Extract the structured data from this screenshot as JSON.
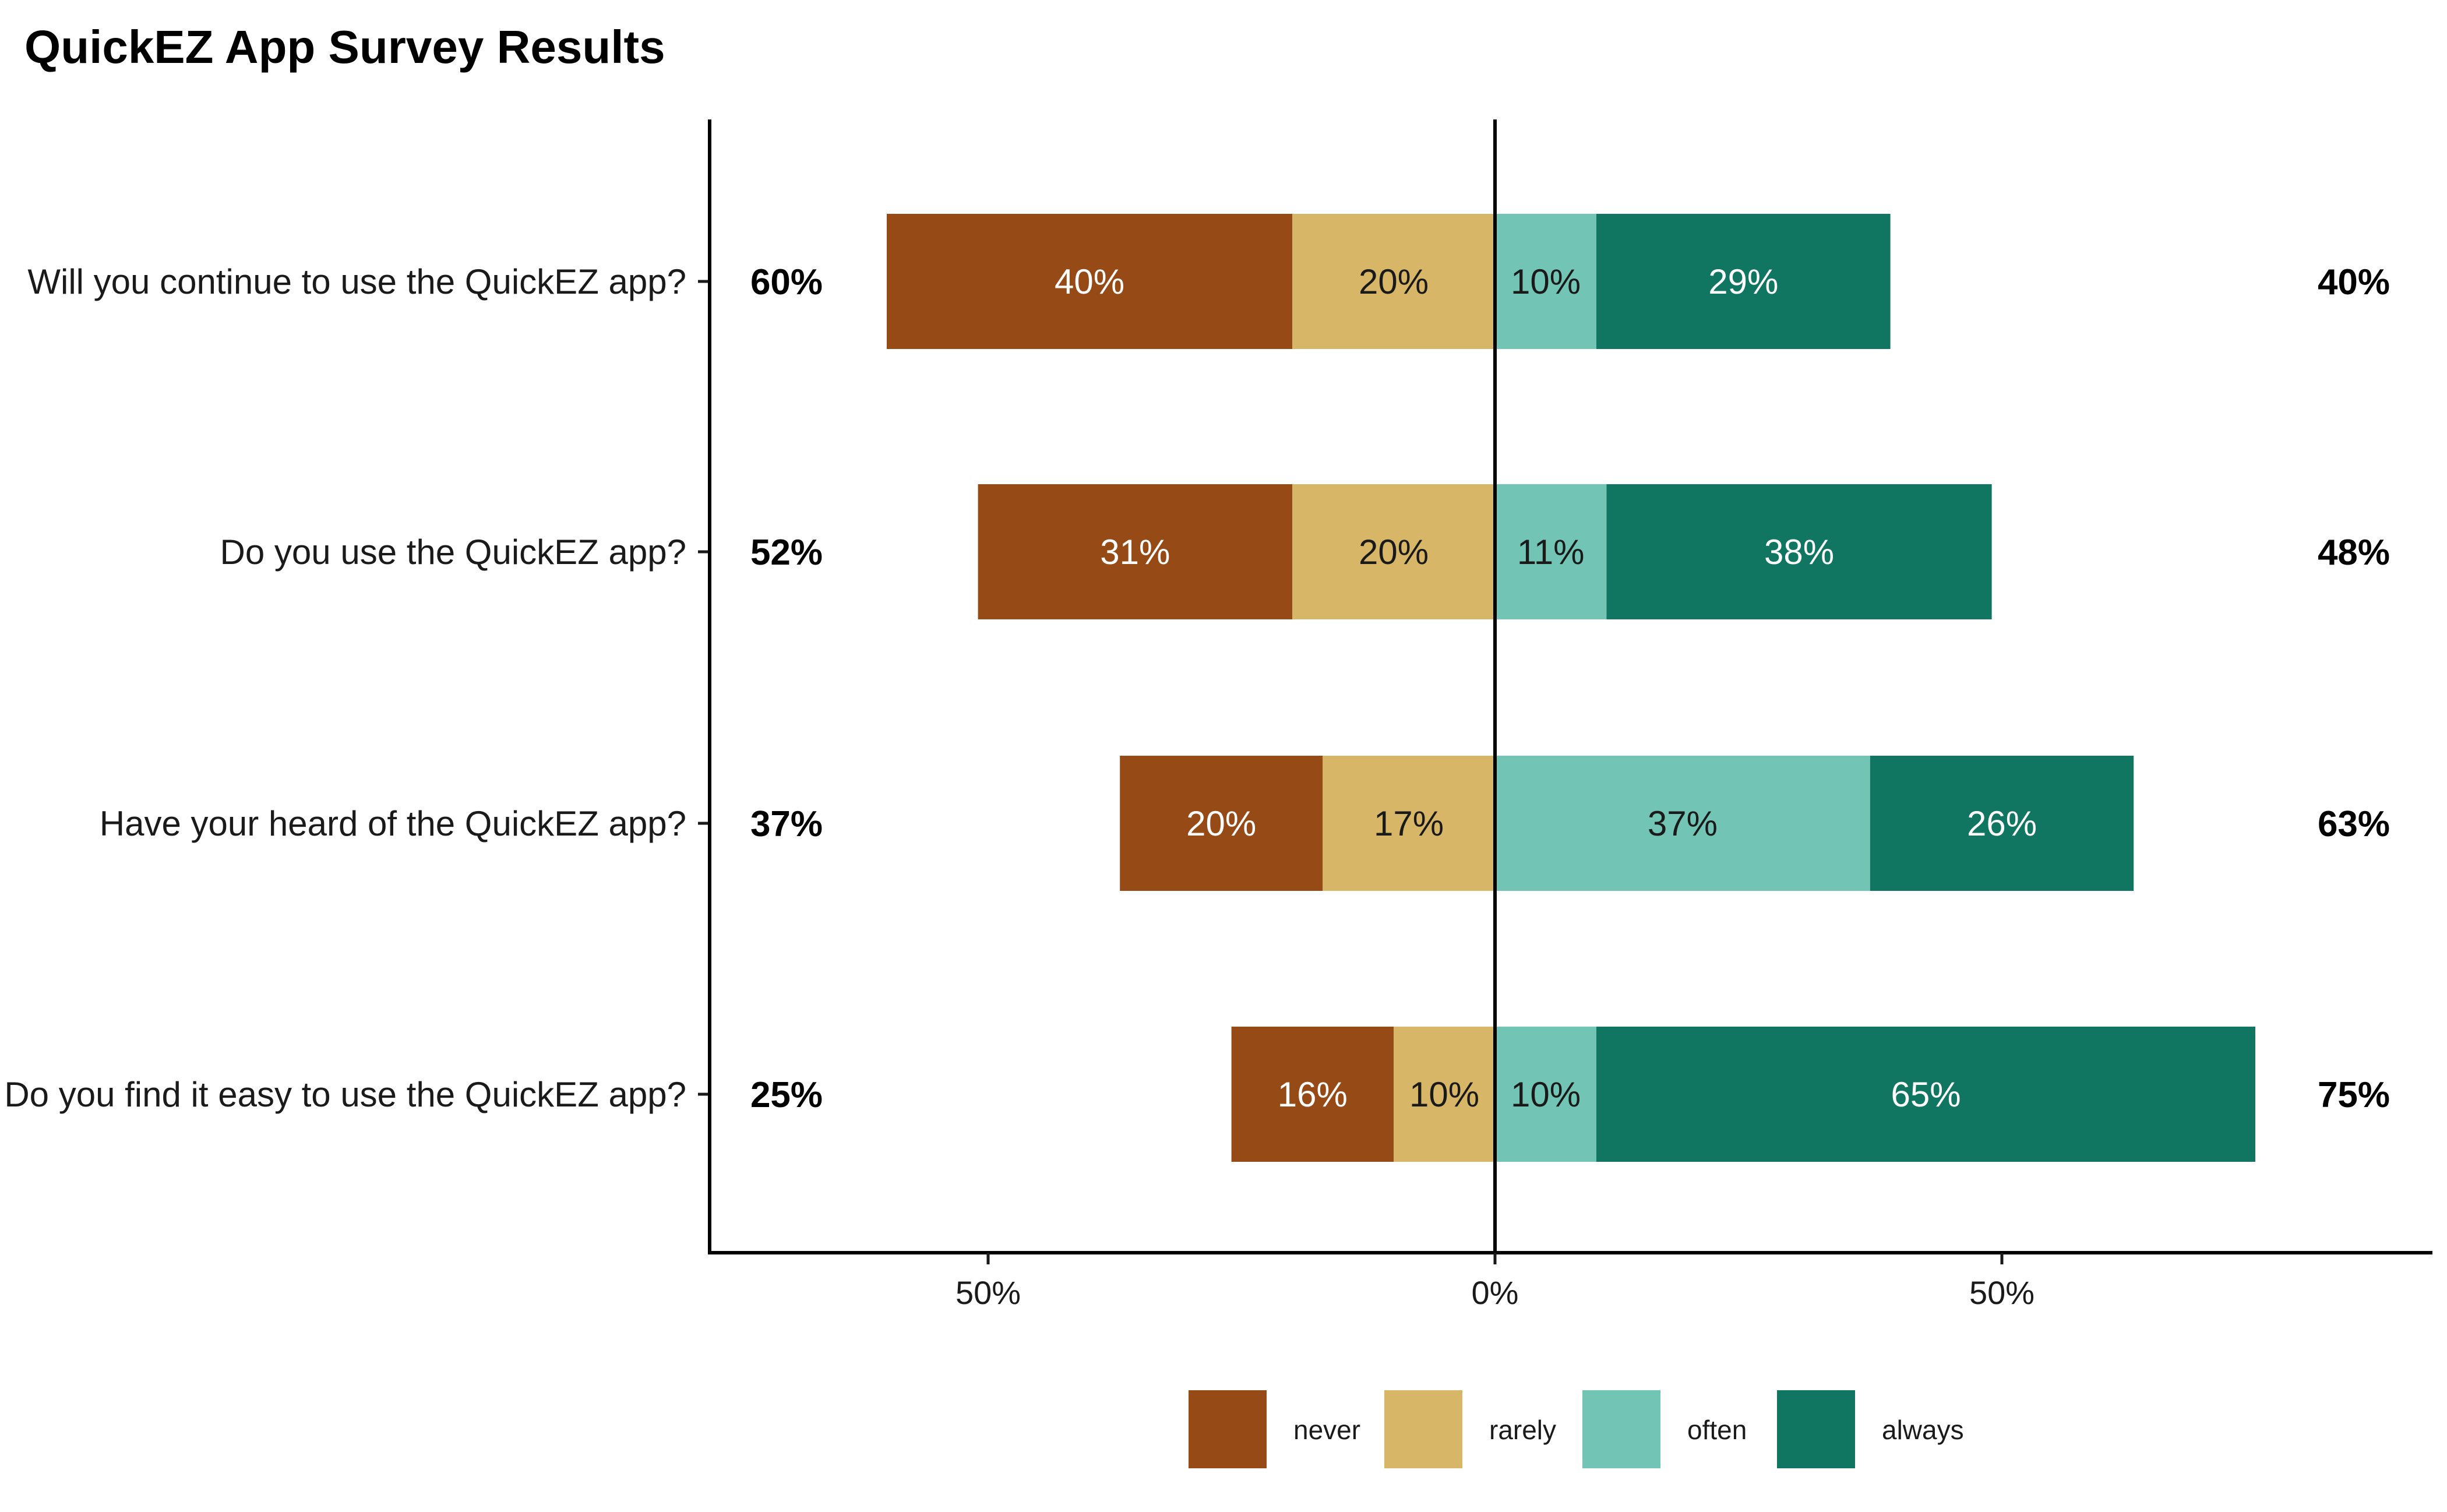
{
  "chart_data": {
    "type": "bar",
    "orientation": "horizontal-diverging",
    "title": "QuickEZ App Survey Results",
    "categories": [
      "Will you continue to use the QuickEZ app?",
      "Do you use the QuickEZ app?",
      "Have your heard of the QuickEZ app?",
      "Do you find it easy to use the QuickEZ app?"
    ],
    "series": [
      {
        "name": "never",
        "color": "#964B16",
        "label_color": "#ffffff",
        "side": "negative",
        "values": [
          40,
          31,
          20,
          16
        ],
        "labels": [
          "40%",
          "31%",
          "20%",
          "16%"
        ]
      },
      {
        "name": "rarely",
        "color": "#D7B667",
        "label_color": "#1a1a1a",
        "side": "negative",
        "values": [
          20,
          20,
          17,
          10
        ],
        "labels": [
          "20%",
          "20%",
          "17%",
          "10%"
        ]
      },
      {
        "name": "often",
        "color": "#72C4B5",
        "label_color": "#1a1a1a",
        "side": "positive",
        "values": [
          10,
          11,
          37,
          10
        ],
        "labels": [
          "10%",
          "11%",
          "37%",
          "10%"
        ]
      },
      {
        "name": "always",
        "color": "#107661",
        "label_color": "#ffffff",
        "side": "positive",
        "values": [
          29,
          38,
          26,
          65
        ],
        "labels": [
          "29%",
          "38%",
          "26%",
          "65%"
        ]
      }
    ],
    "left_totals": [
      "60%",
      "52%",
      "37%",
      "25%"
    ],
    "right_totals": [
      "40%",
      "48%",
      "63%",
      "75%"
    ],
    "xlim": [
      -77.5,
      92
    ],
    "x_ticks": [
      {
        "value": -50,
        "label": "50%"
      },
      {
        "value": 0,
        "label": "0%"
      },
      {
        "value": 50,
        "label": "50%"
      }
    ],
    "legend_position": "bottom",
    "grid": false
  }
}
